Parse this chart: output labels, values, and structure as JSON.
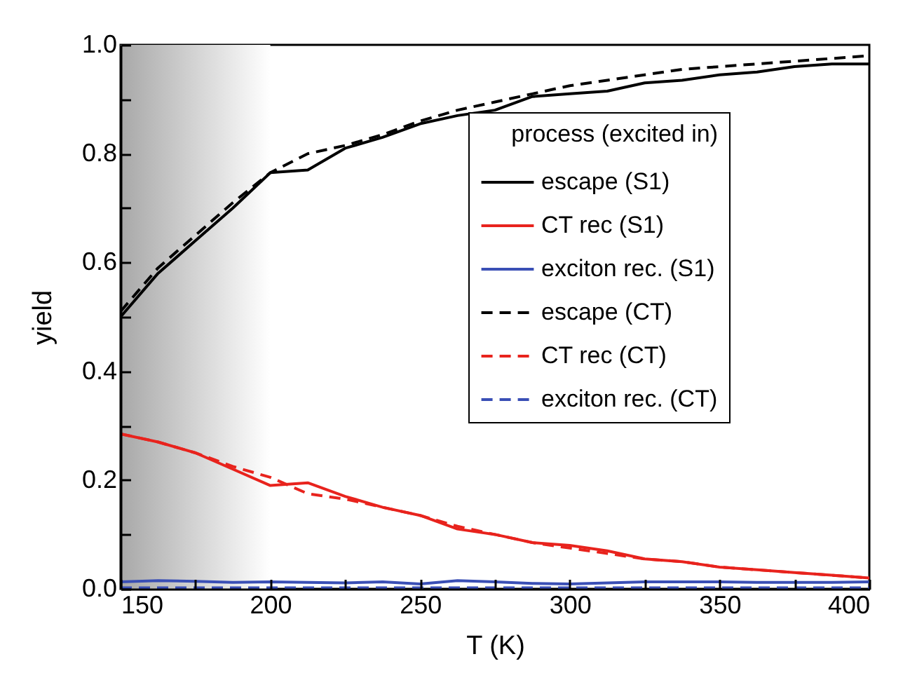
{
  "chart_data": {
    "type": "line",
    "xlabel": "T (K)",
    "ylabel": "yield",
    "legend_title": "process (excited in)",
    "legend": "right",
    "x": [
      150,
      162.5,
      175,
      187.5,
      200,
      212.5,
      225,
      237.5,
      250,
      262.5,
      275,
      287.5,
      300,
      312.5,
      325,
      337.5,
      350,
      362.5,
      375,
      387.5,
      400
    ],
    "series": [
      {
        "name": "escape (S1)",
        "color": "#000000",
        "line_style": "solid",
        "values": [
          0.5,
          0.58,
          0.64,
          0.7,
          0.765,
          0.77,
          0.81,
          0.83,
          0.855,
          0.87,
          0.88,
          0.905,
          0.91,
          0.915,
          0.93,
          0.935,
          0.945,
          0.95,
          0.96,
          0.965,
          0.965
        ]
      },
      {
        "name": "CT rec (S1)",
        "color": "#e8231d",
        "line_style": "solid",
        "values": [
          0.285,
          0.27,
          0.25,
          0.22,
          0.19,
          0.195,
          0.17,
          0.15,
          0.135,
          0.11,
          0.1,
          0.085,
          0.08,
          0.07,
          0.055,
          0.05,
          0.04,
          0.035,
          0.03,
          0.025,
          0.02
        ]
      },
      {
        "name": "exciton rec. (S1)",
        "color": "#3a4fb5",
        "line_style": "solid",
        "values": [
          0.013,
          0.015,
          0.014,
          0.012,
          0.013,
          0.012,
          0.011,
          0.013,
          0.009,
          0.015,
          0.013,
          0.01,
          0.009,
          0.011,
          0.013,
          0.013,
          0.013,
          0.012,
          0.012,
          0.012,
          0.013
        ]
      },
      {
        "name": "escape (CT)",
        "color": "#000000",
        "line_style": "dashed",
        "values": [
          0.51,
          0.59,
          0.65,
          0.71,
          0.765,
          0.8,
          0.815,
          0.835,
          0.86,
          0.88,
          0.895,
          0.91,
          0.925,
          0.935,
          0.945,
          0.955,
          0.96,
          0.965,
          0.97,
          0.975,
          0.98
        ]
      },
      {
        "name": "CT rec (CT)",
        "color": "#e8231d",
        "line_style": "dashed",
        "values": [
          0.285,
          0.27,
          0.25,
          0.225,
          0.205,
          0.175,
          0.165,
          0.15,
          0.135,
          0.115,
          0.1,
          0.085,
          0.075,
          0.065,
          0.055,
          0.05,
          0.04,
          0.035,
          0.03,
          0.025,
          0.02
        ]
      },
      {
        "name": "exciton rec. (CT)",
        "color": "#3a4fb5",
        "line_style": "dashed",
        "values": [
          0.002,
          0.002,
          0.002,
          0.002,
          0.002,
          0.002,
          0.002,
          0.002,
          0.002,
          0.002,
          0.002,
          0.002,
          0.002,
          0.002,
          0.002,
          0.002,
          0.002,
          0.002,
          0.002,
          0.002,
          0.002
        ]
      }
    ],
    "bands": [
      {
        "axis": "x",
        "from": 150,
        "to": 200,
        "color": "#a8a8a8"
      }
    ],
    "xlim": [
      150,
      400
    ],
    "xticks": [
      150,
      {
        "value": 175,
        "label": null
      },
      200,
      {
        "value": 225,
        "label": null
      },
      250,
      {
        "value": 275,
        "label": null
      },
      300,
      {
        "value": 325,
        "label": null
      },
      350,
      {
        "value": 375,
        "label": null
      },
      400
    ],
    "ylim": [
      0,
      1
    ],
    "yticks": [
      {
        "value": 0,
        "label": "0.0"
      },
      {
        "value": 0.1,
        "label": null
      },
      {
        "value": 0.2,
        "label": "0.2"
      },
      {
        "value": 0.3,
        "label": null
      },
      {
        "value": 0.4,
        "label": "0.4"
      },
      {
        "value": 0.5,
        "label": null
      },
      {
        "value": 0.6,
        "label": "0.6"
      },
      {
        "value": 0.7,
        "label": null
      },
      {
        "value": 0.8,
        "label": "0.8"
      },
      {
        "value": 0.9,
        "label": null
      },
      {
        "value": 1.0,
        "label": "1.0"
      }
    ]
  }
}
